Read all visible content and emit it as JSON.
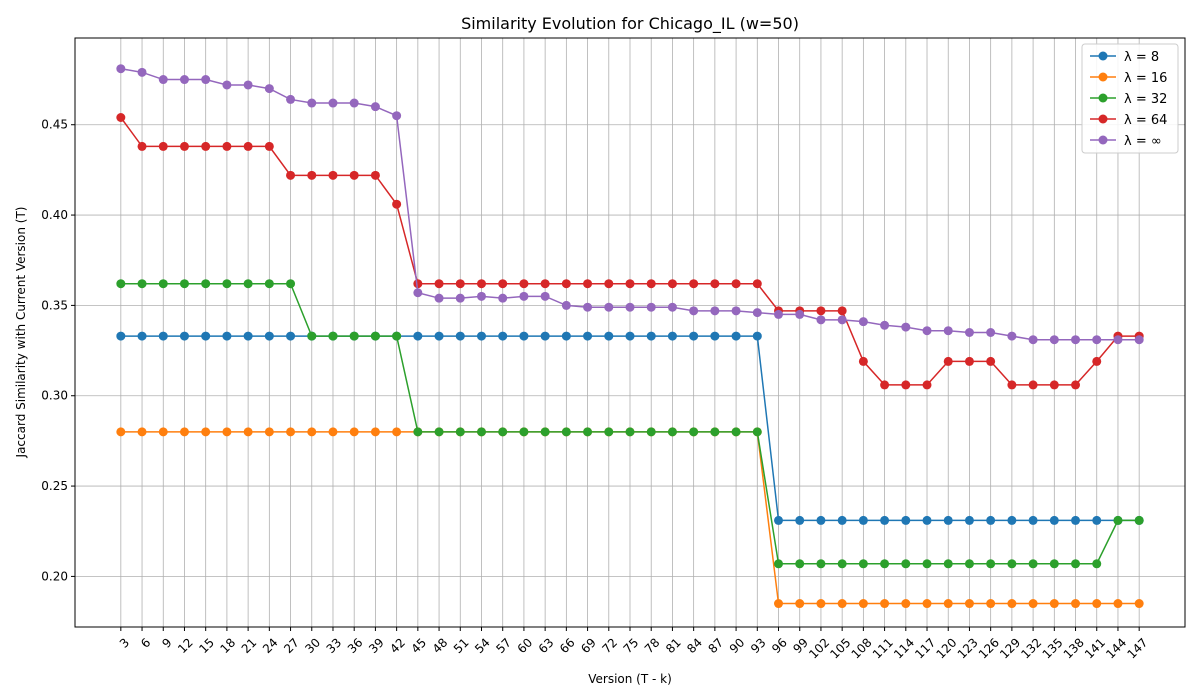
{
  "chart_data": {
    "type": "line",
    "title": "Similarity Evolution for Chicago_IL (w=50)",
    "xlabel": "Version (T - k)",
    "ylabel": "Jaccard Similarity with Current Version (T)",
    "ylim": [
      0.172,
      0.498
    ],
    "yticks": [
      0.2,
      0.25,
      0.3,
      0.35,
      0.4,
      0.45
    ],
    "ytick_labels": [
      "0.20",
      "0.25",
      "0.30",
      "0.35",
      "0.40",
      "0.45"
    ],
    "grid": true,
    "legend_position": "top-right",
    "x": [
      3,
      6,
      9,
      12,
      15,
      18,
      21,
      24,
      27,
      30,
      33,
      36,
      39,
      42,
      45,
      48,
      51,
      54,
      57,
      60,
      63,
      66,
      69,
      72,
      75,
      78,
      81,
      84,
      87,
      90,
      93,
      96,
      99,
      102,
      105,
      108,
      111,
      114,
      117,
      120,
      123,
      126,
      129,
      132,
      135,
      138,
      141,
      144,
      147
    ],
    "series": [
      {
        "name": "λ = 8",
        "color": "#1f77b4",
        "values": [
          0.333,
          0.333,
          0.333,
          0.333,
          0.333,
          0.333,
          0.333,
          0.333,
          0.333,
          0.333,
          0.333,
          0.333,
          0.333,
          0.333,
          0.333,
          0.333,
          0.333,
          0.333,
          0.333,
          0.333,
          0.333,
          0.333,
          0.333,
          0.333,
          0.333,
          0.333,
          0.333,
          0.333,
          0.333,
          0.333,
          0.333,
          0.231,
          0.231,
          0.231,
          0.231,
          0.231,
          0.231,
          0.231,
          0.231,
          0.231,
          0.231,
          0.231,
          0.231,
          0.231,
          0.231,
          0.231,
          0.231,
          0.231,
          0.231
        ]
      },
      {
        "name": "λ = 16",
        "color": "#ff7f0e",
        "values": [
          0.28,
          0.28,
          0.28,
          0.28,
          0.28,
          0.28,
          0.28,
          0.28,
          0.28,
          0.28,
          0.28,
          0.28,
          0.28,
          0.28,
          0.28,
          0.28,
          0.28,
          0.28,
          0.28,
          0.28,
          0.28,
          0.28,
          0.28,
          0.28,
          0.28,
          0.28,
          0.28,
          0.28,
          0.28,
          0.28,
          0.28,
          0.185,
          0.185,
          0.185,
          0.185,
          0.185,
          0.185,
          0.185,
          0.185,
          0.185,
          0.185,
          0.185,
          0.185,
          0.185,
          0.185,
          0.185,
          0.185,
          0.185,
          0.185
        ]
      },
      {
        "name": "λ = 32",
        "color": "#2ca02c",
        "values": [
          0.362,
          0.362,
          0.362,
          0.362,
          0.362,
          0.362,
          0.362,
          0.362,
          0.362,
          0.333,
          0.333,
          0.333,
          0.333,
          0.333,
          0.28,
          0.28,
          0.28,
          0.28,
          0.28,
          0.28,
          0.28,
          0.28,
          0.28,
          0.28,
          0.28,
          0.28,
          0.28,
          0.28,
          0.28,
          0.28,
          0.28,
          0.207,
          0.207,
          0.207,
          0.207,
          0.207,
          0.207,
          0.207,
          0.207,
          0.207,
          0.207,
          0.207,
          0.207,
          0.207,
          0.207,
          0.207,
          0.207,
          0.231,
          0.231
        ]
      },
      {
        "name": "λ = 64",
        "color": "#d62728",
        "values": [
          0.454,
          0.438,
          0.438,
          0.438,
          0.438,
          0.438,
          0.438,
          0.438,
          0.422,
          0.422,
          0.422,
          0.422,
          0.422,
          0.406,
          0.362,
          0.362,
          0.362,
          0.362,
          0.362,
          0.362,
          0.362,
          0.362,
          0.362,
          0.362,
          0.362,
          0.362,
          0.362,
          0.362,
          0.362,
          0.362,
          0.362,
          0.347,
          0.347,
          0.347,
          0.347,
          0.319,
          0.306,
          0.306,
          0.306,
          0.319,
          0.319,
          0.319,
          0.306,
          0.306,
          0.306,
          0.306,
          0.319,
          0.333,
          0.333
        ]
      },
      {
        "name": "λ = ∞",
        "color": "#9467bd",
        "values": [
          0.481,
          0.479,
          0.475,
          0.475,
          0.475,
          0.472,
          0.472,
          0.47,
          0.464,
          0.462,
          0.462,
          0.462,
          0.46,
          0.455,
          0.357,
          0.354,
          0.354,
          0.355,
          0.354,
          0.355,
          0.355,
          0.35,
          0.349,
          0.349,
          0.349,
          0.349,
          0.349,
          0.347,
          0.347,
          0.347,
          0.346,
          0.345,
          0.345,
          0.342,
          0.342,
          0.341,
          0.339,
          0.338,
          0.336,
          0.336,
          0.335,
          0.335,
          0.333,
          0.331,
          0.331,
          0.331,
          0.331,
          0.331,
          0.331
        ]
      }
    ]
  }
}
